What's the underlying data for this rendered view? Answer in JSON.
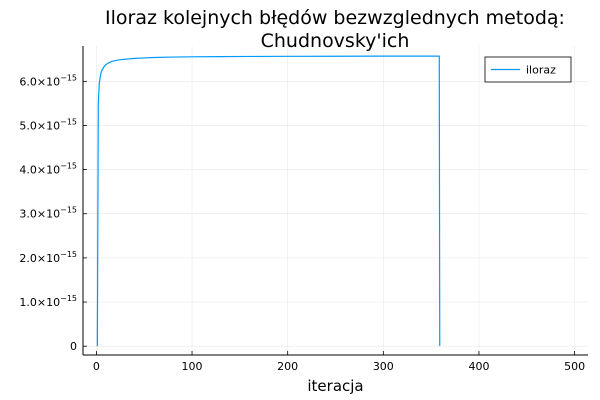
{
  "chart_data": {
    "type": "line",
    "title_lines": [
      "Iloraz kolejnych błędów bezwzglednych metodą:",
      "Chudnovsky'ich"
    ],
    "xlabel": "iteracja",
    "ylabel": "",
    "xlim": [
      -14,
      514
    ],
    "ylim": [
      -2e-16,
      6.8e-15
    ],
    "xticks": [
      {
        "value": 0,
        "label": "0"
      },
      {
        "value": 100,
        "label": "100"
      },
      {
        "value": 200,
        "label": "200"
      },
      {
        "value": 300,
        "label": "300"
      },
      {
        "value": 400,
        "label": "400"
      },
      {
        "value": 500,
        "label": "500"
      }
    ],
    "yticks": [
      {
        "value": 0,
        "label": "0",
        "exp": ""
      },
      {
        "value": 1e-15,
        "label": "1.0×10",
        "exp": "−15"
      },
      {
        "value": 2e-15,
        "label": "2.0×10",
        "exp": "−15"
      },
      {
        "value": 3e-15,
        "label": "3.0×10",
        "exp": "−15"
      },
      {
        "value": 4e-15,
        "label": "4.0×10",
        "exp": "−15"
      },
      {
        "value": 5e-15,
        "label": "5.0×10",
        "exp": "−15"
      },
      {
        "value": 6e-15,
        "label": "6.0×10",
        "exp": "−15"
      }
    ],
    "grid": true,
    "legend_position": "top-right",
    "series": [
      {
        "name": "iloraz",
        "color": "#009AFA",
        "x": [
          1,
          2,
          3,
          4,
          5,
          6,
          8,
          10,
          13,
          16,
          20,
          25,
          30,
          40,
          50,
          60,
          80,
          100,
          130,
          160,
          200,
          250,
          300,
          340,
          358,
          358.5,
          359
        ],
        "y": [
          0,
          5.5e-15,
          5.95e-15,
          6.1e-15,
          6.2e-15,
          6.26e-15,
          6.33e-15,
          6.38e-15,
          6.42e-15,
          6.45e-15,
          6.47e-15,
          6.49e-15,
          6.5e-15,
          6.52e-15,
          6.53e-15,
          6.54e-15,
          6.55e-15,
          6.555e-15,
          6.56e-15,
          6.563e-15,
          6.566e-15,
          6.568e-15,
          6.57e-15,
          6.571e-15,
          6.571e-15,
          6.571e-15,
          0
        ]
      }
    ]
  }
}
